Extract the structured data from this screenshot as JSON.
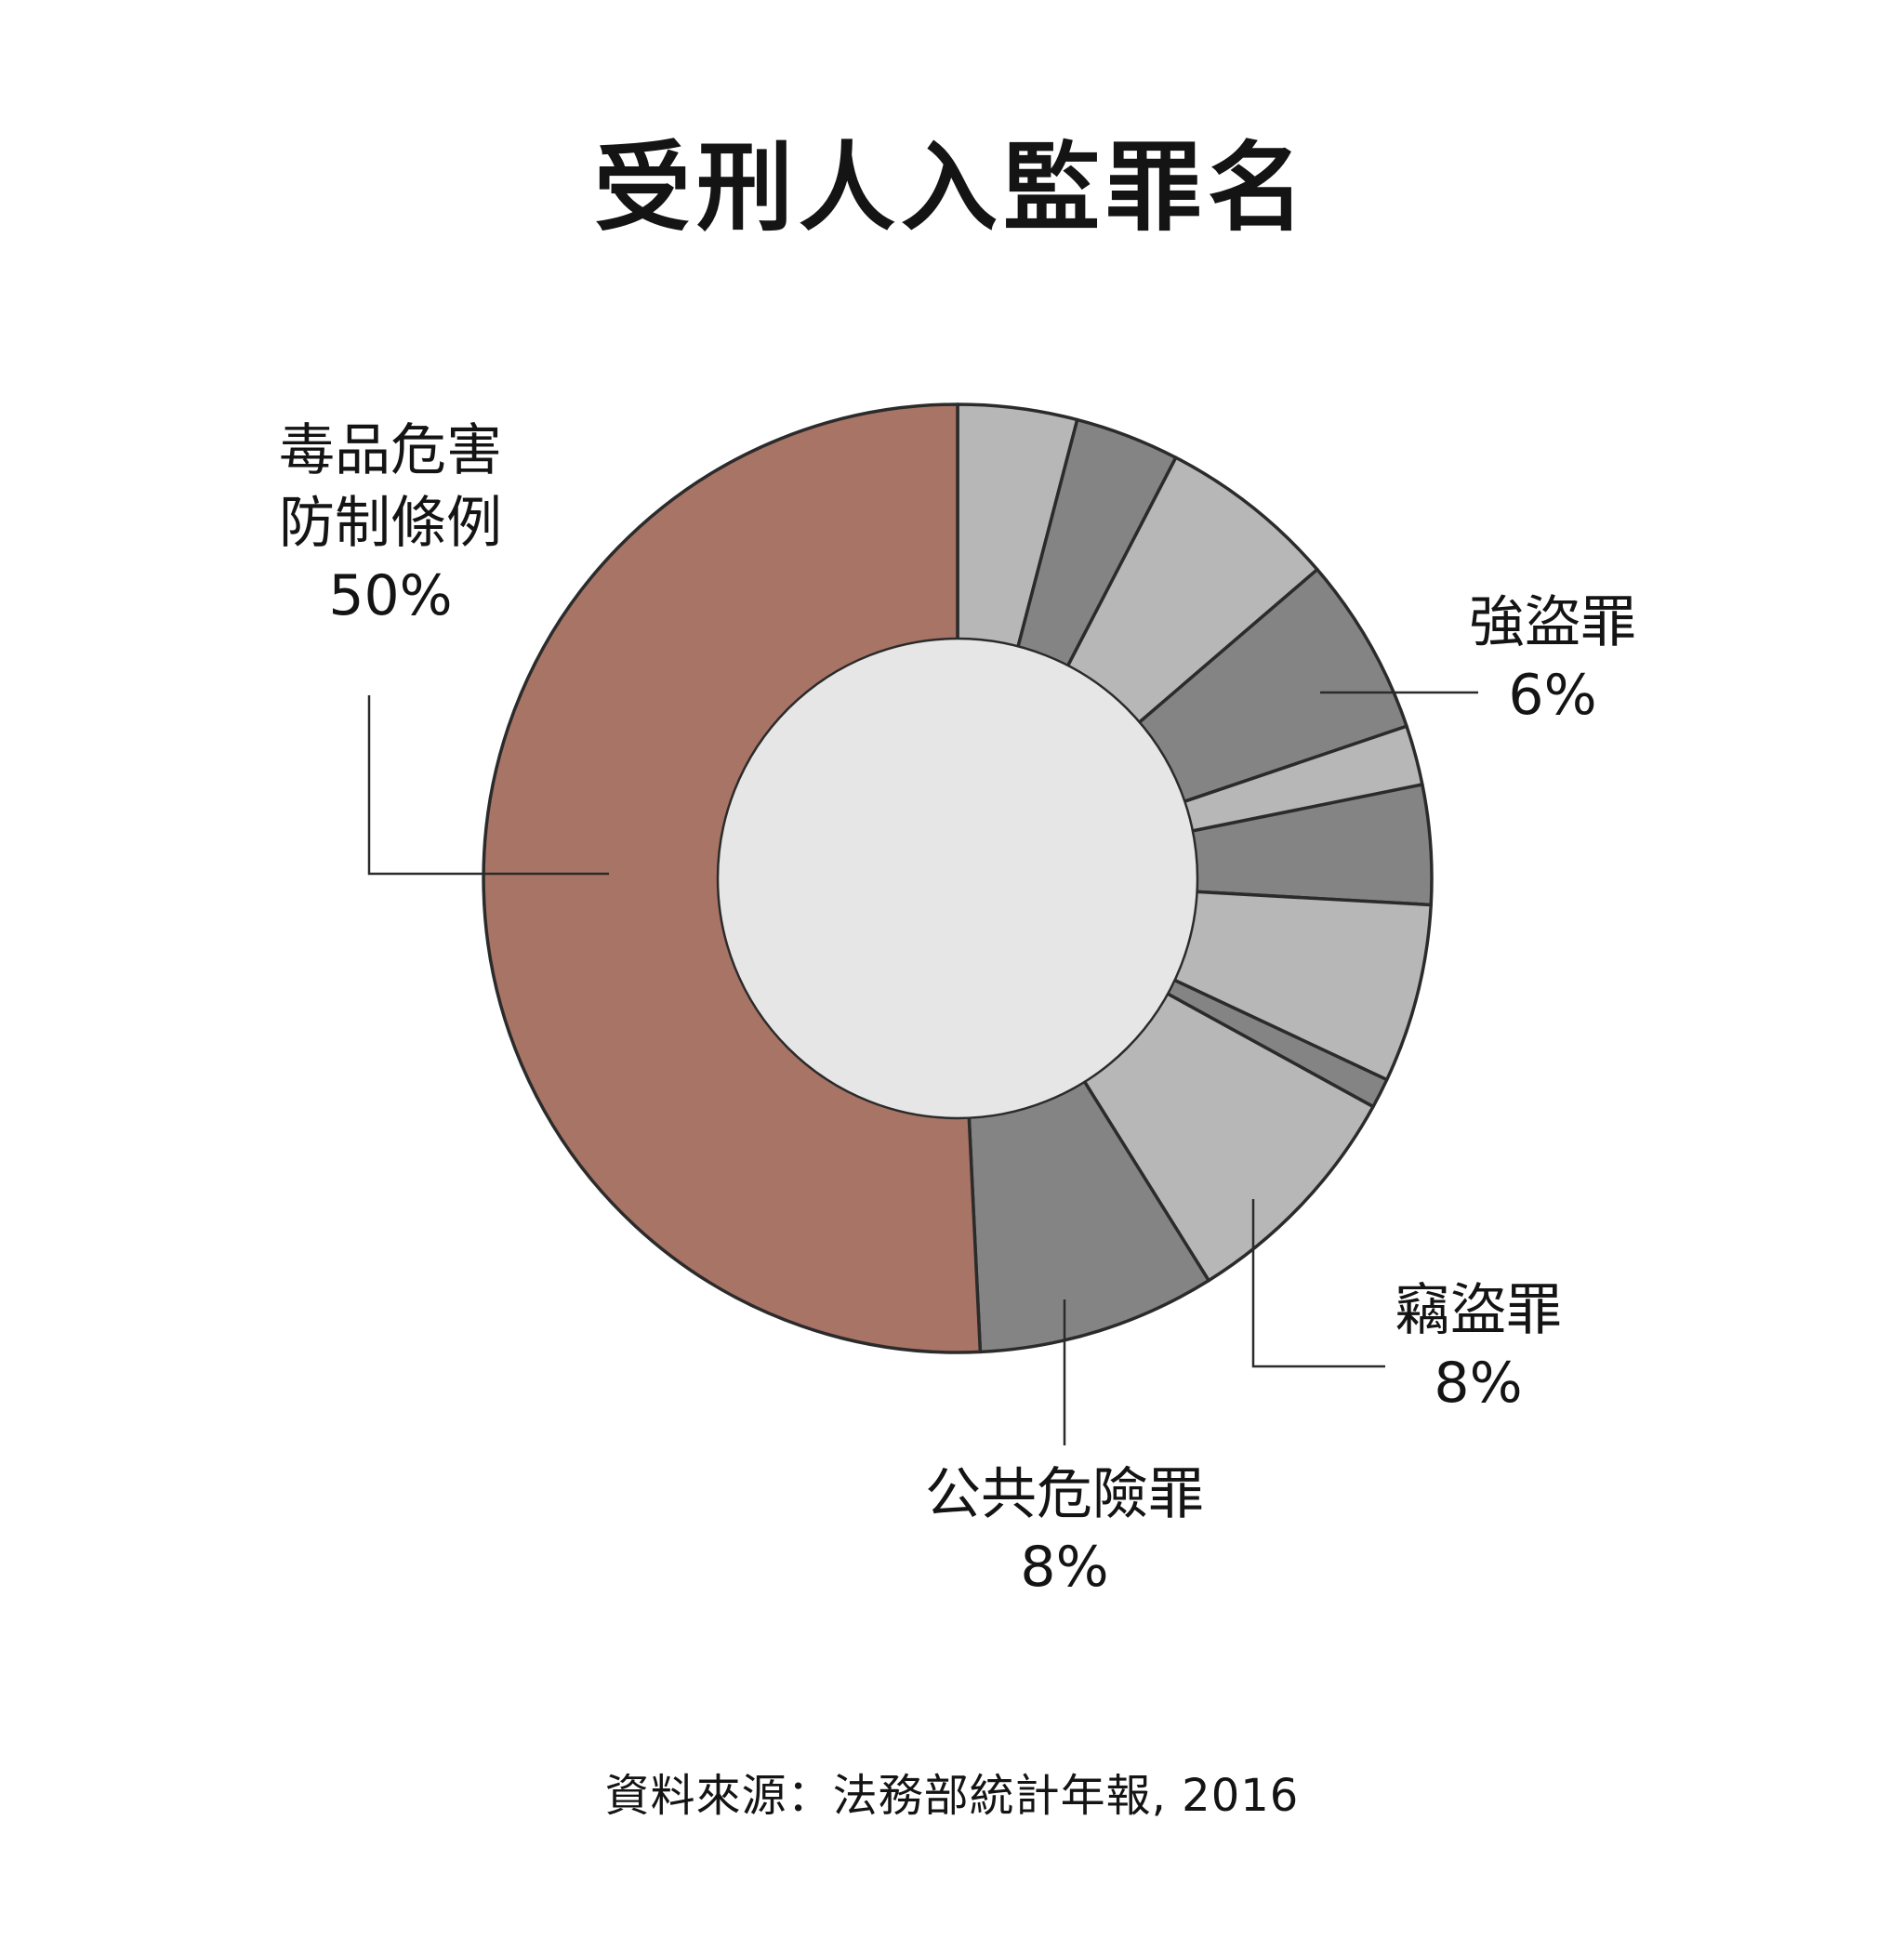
{
  "chart_data": {
    "type": "pie",
    "variant": "donut",
    "title": "受刑人入監罪名",
    "source": "資料來源：法務部統計年報, 2016",
    "unit": "%",
    "colors": {
      "highlight": "#a87466",
      "dark": "#848484",
      "light": "#b7b7b7",
      "center": "#e6e6e6",
      "stroke": "#2b2b2b"
    },
    "slices": [
      {
        "value": 4.0,
        "tone": "light"
      },
      {
        "value": 3.5,
        "tone": "dark"
      },
      {
        "value": 6.0,
        "tone": "light"
      },
      {
        "value": 6.0,
        "tone": "dark",
        "label": [
          "強盜罪",
          "6%"
        ]
      },
      {
        "value": 2.0,
        "tone": "light"
      },
      {
        "value": 4.0,
        "tone": "dark"
      },
      {
        "value": 6.0,
        "tone": "light"
      },
      {
        "value": 1.0,
        "tone": "dark"
      },
      {
        "value": 8.0,
        "tone": "light",
        "label": [
          "竊盜罪",
          "8%"
        ]
      },
      {
        "value": 8.0,
        "tone": "dark",
        "label": [
          "公共危險罪",
          "8%"
        ]
      },
      {
        "value": 50.0,
        "tone": "highlight",
        "label": [
          "毒品危害",
          "防制條例",
          "50%"
        ]
      }
    ]
  }
}
